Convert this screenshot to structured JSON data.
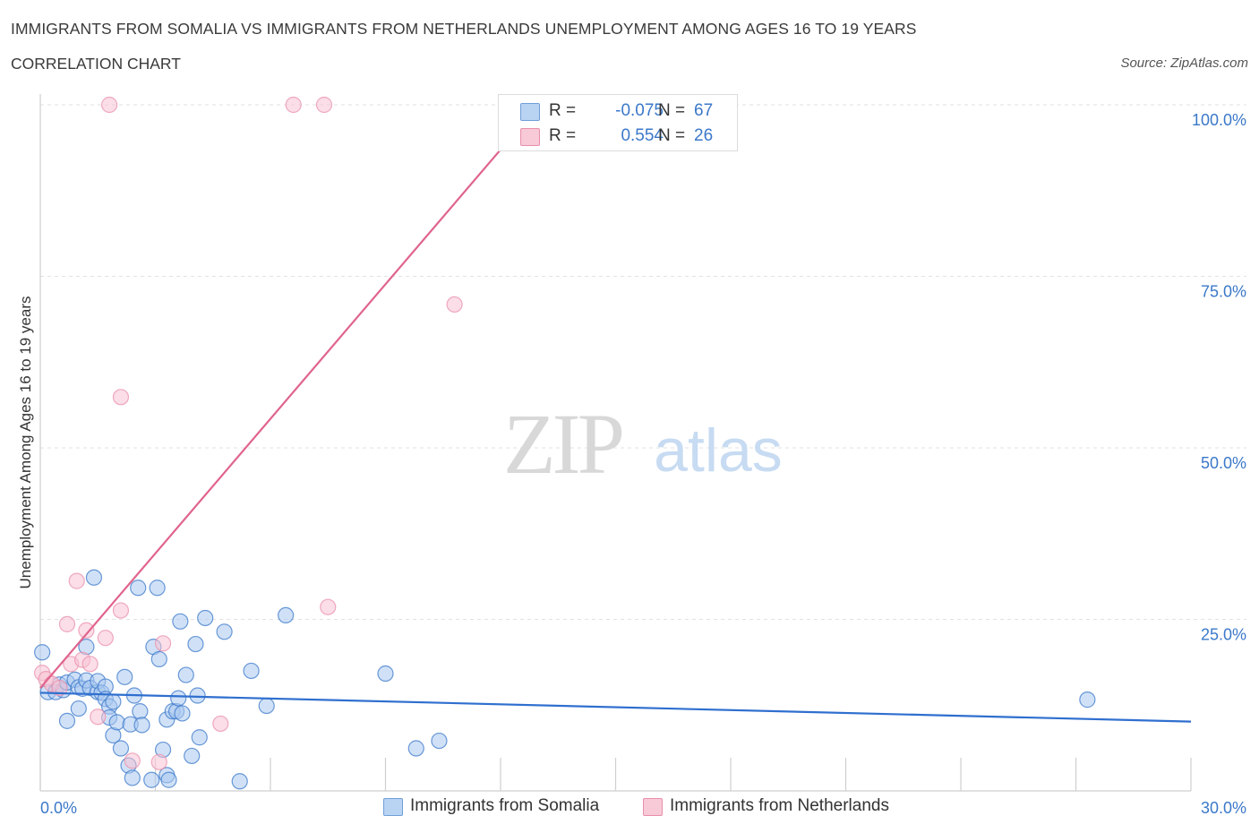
{
  "header": {
    "title": "IMMIGRANTS FROM SOMALIA VS IMMIGRANTS FROM NETHERLANDS UNEMPLOYMENT AMONG AGES 16 TO 19 YEARS",
    "subtitle": "CORRELATION CHART",
    "source": "Source: ZipAtlas.com"
  },
  "watermark": {
    "zip": "ZIP",
    "atlas": "atlas"
  },
  "legend": {
    "items": [
      {
        "r_label": "R =",
        "r_value": "-0.075",
        "n_label": "N =",
        "n_value": "67",
        "color": "#a9c9f0",
        "border": "#6f9fd8"
      },
      {
        "r_label": "R =",
        "r_value": "0.554",
        "n_label": "N =",
        "n_value": "26",
        "color": "#f8c3d3",
        "border": "#e98fab"
      }
    ]
  },
  "bottom_legend": {
    "somalia": "Immigrants from Somalia",
    "netherlands": "Immigrants from Netherlands"
  },
  "chart_data": {
    "type": "scatter",
    "xlabel": "",
    "ylabel": "Unemployment Among Ages 16 to 19 years",
    "xlim": [
      0,
      30
    ],
    "ylim": [
      0,
      100
    ],
    "x_tick_labels": {
      "left": "0.0%",
      "right": "30.0%"
    },
    "y_tick_labels": [
      "25.0%",
      "50.0%",
      "75.0%",
      "100.0%"
    ],
    "y_ticks": [
      25,
      50,
      75,
      100
    ],
    "grid": true,
    "legend_placement": "bottom-center",
    "colors": {
      "somalia_fill": "#a9c9f0",
      "somalia_stroke": "#3b78c9",
      "somalia_line": "#2f6fcf",
      "netherlands_fill": "#f8c3d3",
      "netherlands_stroke": "#e98fab",
      "netherlands_line": "#e0648d",
      "tick_label": "#3b78c9",
      "grid": "#e2e2e2"
    },
    "series": [
      {
        "name": "Immigrants from Somalia",
        "r": -0.075,
        "n": 67,
        "trend": {
          "x": [
            0,
            30
          ],
          "y": [
            14.3,
            10.1
          ]
        },
        "points": [
          [
            0.05,
            20.2
          ],
          [
            0.2,
            14.4
          ],
          [
            0.4,
            14.4
          ],
          [
            0.5,
            15.5
          ],
          [
            0.6,
            14.7
          ],
          [
            0.7,
            15.8
          ],
          [
            0.7,
            10.2
          ],
          [
            0.9,
            16.2
          ],
          [
            1.0,
            15.1
          ],
          [
            1.0,
            12.0
          ],
          [
            1.1,
            14.9
          ],
          [
            1.2,
            16.1
          ],
          [
            1.2,
            21.0
          ],
          [
            1.3,
            15.0
          ],
          [
            1.4,
            31.1
          ],
          [
            1.5,
            14.4
          ],
          [
            1.5,
            16.0
          ],
          [
            1.6,
            14.3
          ],
          [
            1.7,
            15.2
          ],
          [
            1.7,
            13.4
          ],
          [
            1.8,
            12.3
          ],
          [
            1.8,
            10.7
          ],
          [
            1.9,
            13.0
          ],
          [
            1.9,
            8.1
          ],
          [
            2.0,
            10.0
          ],
          [
            2.1,
            6.2
          ],
          [
            2.2,
            16.6
          ],
          [
            2.3,
            3.7
          ],
          [
            2.35,
            9.7
          ],
          [
            2.4,
            1.9
          ],
          [
            2.45,
            13.9
          ],
          [
            2.55,
            29.6
          ],
          [
            2.6,
            11.6
          ],
          [
            2.65,
            9.6
          ],
          [
            2.9,
            1.6
          ],
          [
            2.95,
            21.0
          ],
          [
            3.05,
            29.6
          ],
          [
            3.1,
            19.2
          ],
          [
            3.2,
            6.0
          ],
          [
            3.3,
            10.4
          ],
          [
            3.3,
            2.3
          ],
          [
            3.35,
            1.6
          ],
          [
            3.45,
            11.6
          ],
          [
            3.55,
            11.6
          ],
          [
            3.6,
            13.5
          ],
          [
            3.65,
            24.7
          ],
          [
            3.7,
            11.3
          ],
          [
            3.8,
            16.9
          ],
          [
            3.95,
            5.1
          ],
          [
            4.05,
            21.4
          ],
          [
            4.1,
            13.9
          ],
          [
            4.15,
            7.8
          ],
          [
            4.3,
            25.2
          ],
          [
            4.8,
            23.2
          ],
          [
            5.2,
            1.4
          ],
          [
            5.5,
            17.5
          ],
          [
            5.9,
            12.4
          ],
          [
            6.4,
            25.6
          ],
          [
            9.0,
            17.1
          ],
          [
            9.8,
            6.2
          ],
          [
            10.4,
            7.3
          ],
          [
            27.3,
            13.3
          ]
        ]
      },
      {
        "name": "Immigrants from Netherlands",
        "r": 0.554,
        "n": 26,
        "trend": {
          "x": [
            0,
            13.0
          ],
          "y": [
            15.0,
            100
          ]
        },
        "points": [
          [
            0.05,
            17.2
          ],
          [
            0.15,
            16.3
          ],
          [
            0.3,
            15.6
          ],
          [
            0.5,
            15.0
          ],
          [
            0.7,
            24.3
          ],
          [
            0.8,
            18.5
          ],
          [
            0.95,
            30.6
          ],
          [
            1.1,
            19.1
          ],
          [
            1.2,
            23.4
          ],
          [
            1.3,
            18.5
          ],
          [
            1.5,
            10.8
          ],
          [
            1.7,
            22.3
          ],
          [
            1.8,
            100
          ],
          [
            2.1,
            57.4
          ],
          [
            2.1,
            26.3
          ],
          [
            2.4,
            4.4
          ],
          [
            3.1,
            4.2
          ],
          [
            3.2,
            21.5
          ],
          [
            4.7,
            9.8
          ],
          [
            6.6,
            100
          ],
          [
            7.4,
            100
          ],
          [
            7.5,
            26.8
          ],
          [
            10.8,
            70.9
          ]
        ]
      }
    ]
  }
}
